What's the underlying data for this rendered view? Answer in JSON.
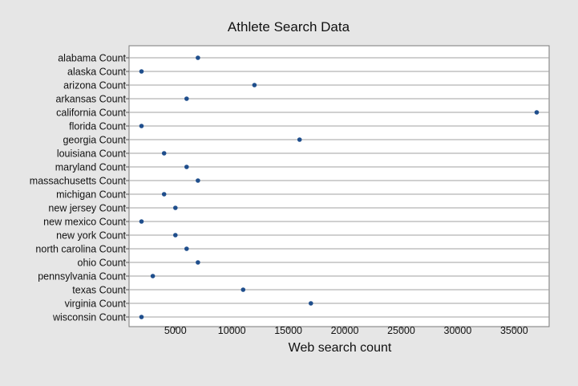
{
  "chart_data": {
    "type": "scatter",
    "title": "Athlete Search Data",
    "xlabel": "Web search count",
    "ylabel": "",
    "xlim": [
      900,
      38100
    ],
    "xticks": [
      5000,
      10000,
      15000,
      20000,
      25000,
      30000,
      35000
    ],
    "grid": "horizontal",
    "colors": {
      "marker": "#1f4e8c",
      "background": "#e6e6e6",
      "plot_bg": "#ffffff",
      "gridline": "#a0a0a0"
    },
    "categories": [
      "alabama Count",
      "alaska Count",
      "arizona Count",
      "arkansas Count",
      "california Count",
      "florida Count",
      "georgia Count",
      "louisiana Count",
      "maryland Count",
      "massachusetts Count",
      "michigan Count",
      "new jersey Count",
      "new mexico Count",
      "new york Count",
      "north carolina Count",
      "ohio Count",
      "pennsylvania Count",
      "texas Count",
      "virginia Count",
      "wisconsin Count"
    ],
    "values": [
      7000,
      2000,
      12000,
      6000,
      37000,
      2000,
      16000,
      4000,
      6000,
      7000,
      4000,
      5000,
      2000,
      5000,
      6000,
      7000,
      3000,
      11000,
      17000,
      2000
    ]
  }
}
